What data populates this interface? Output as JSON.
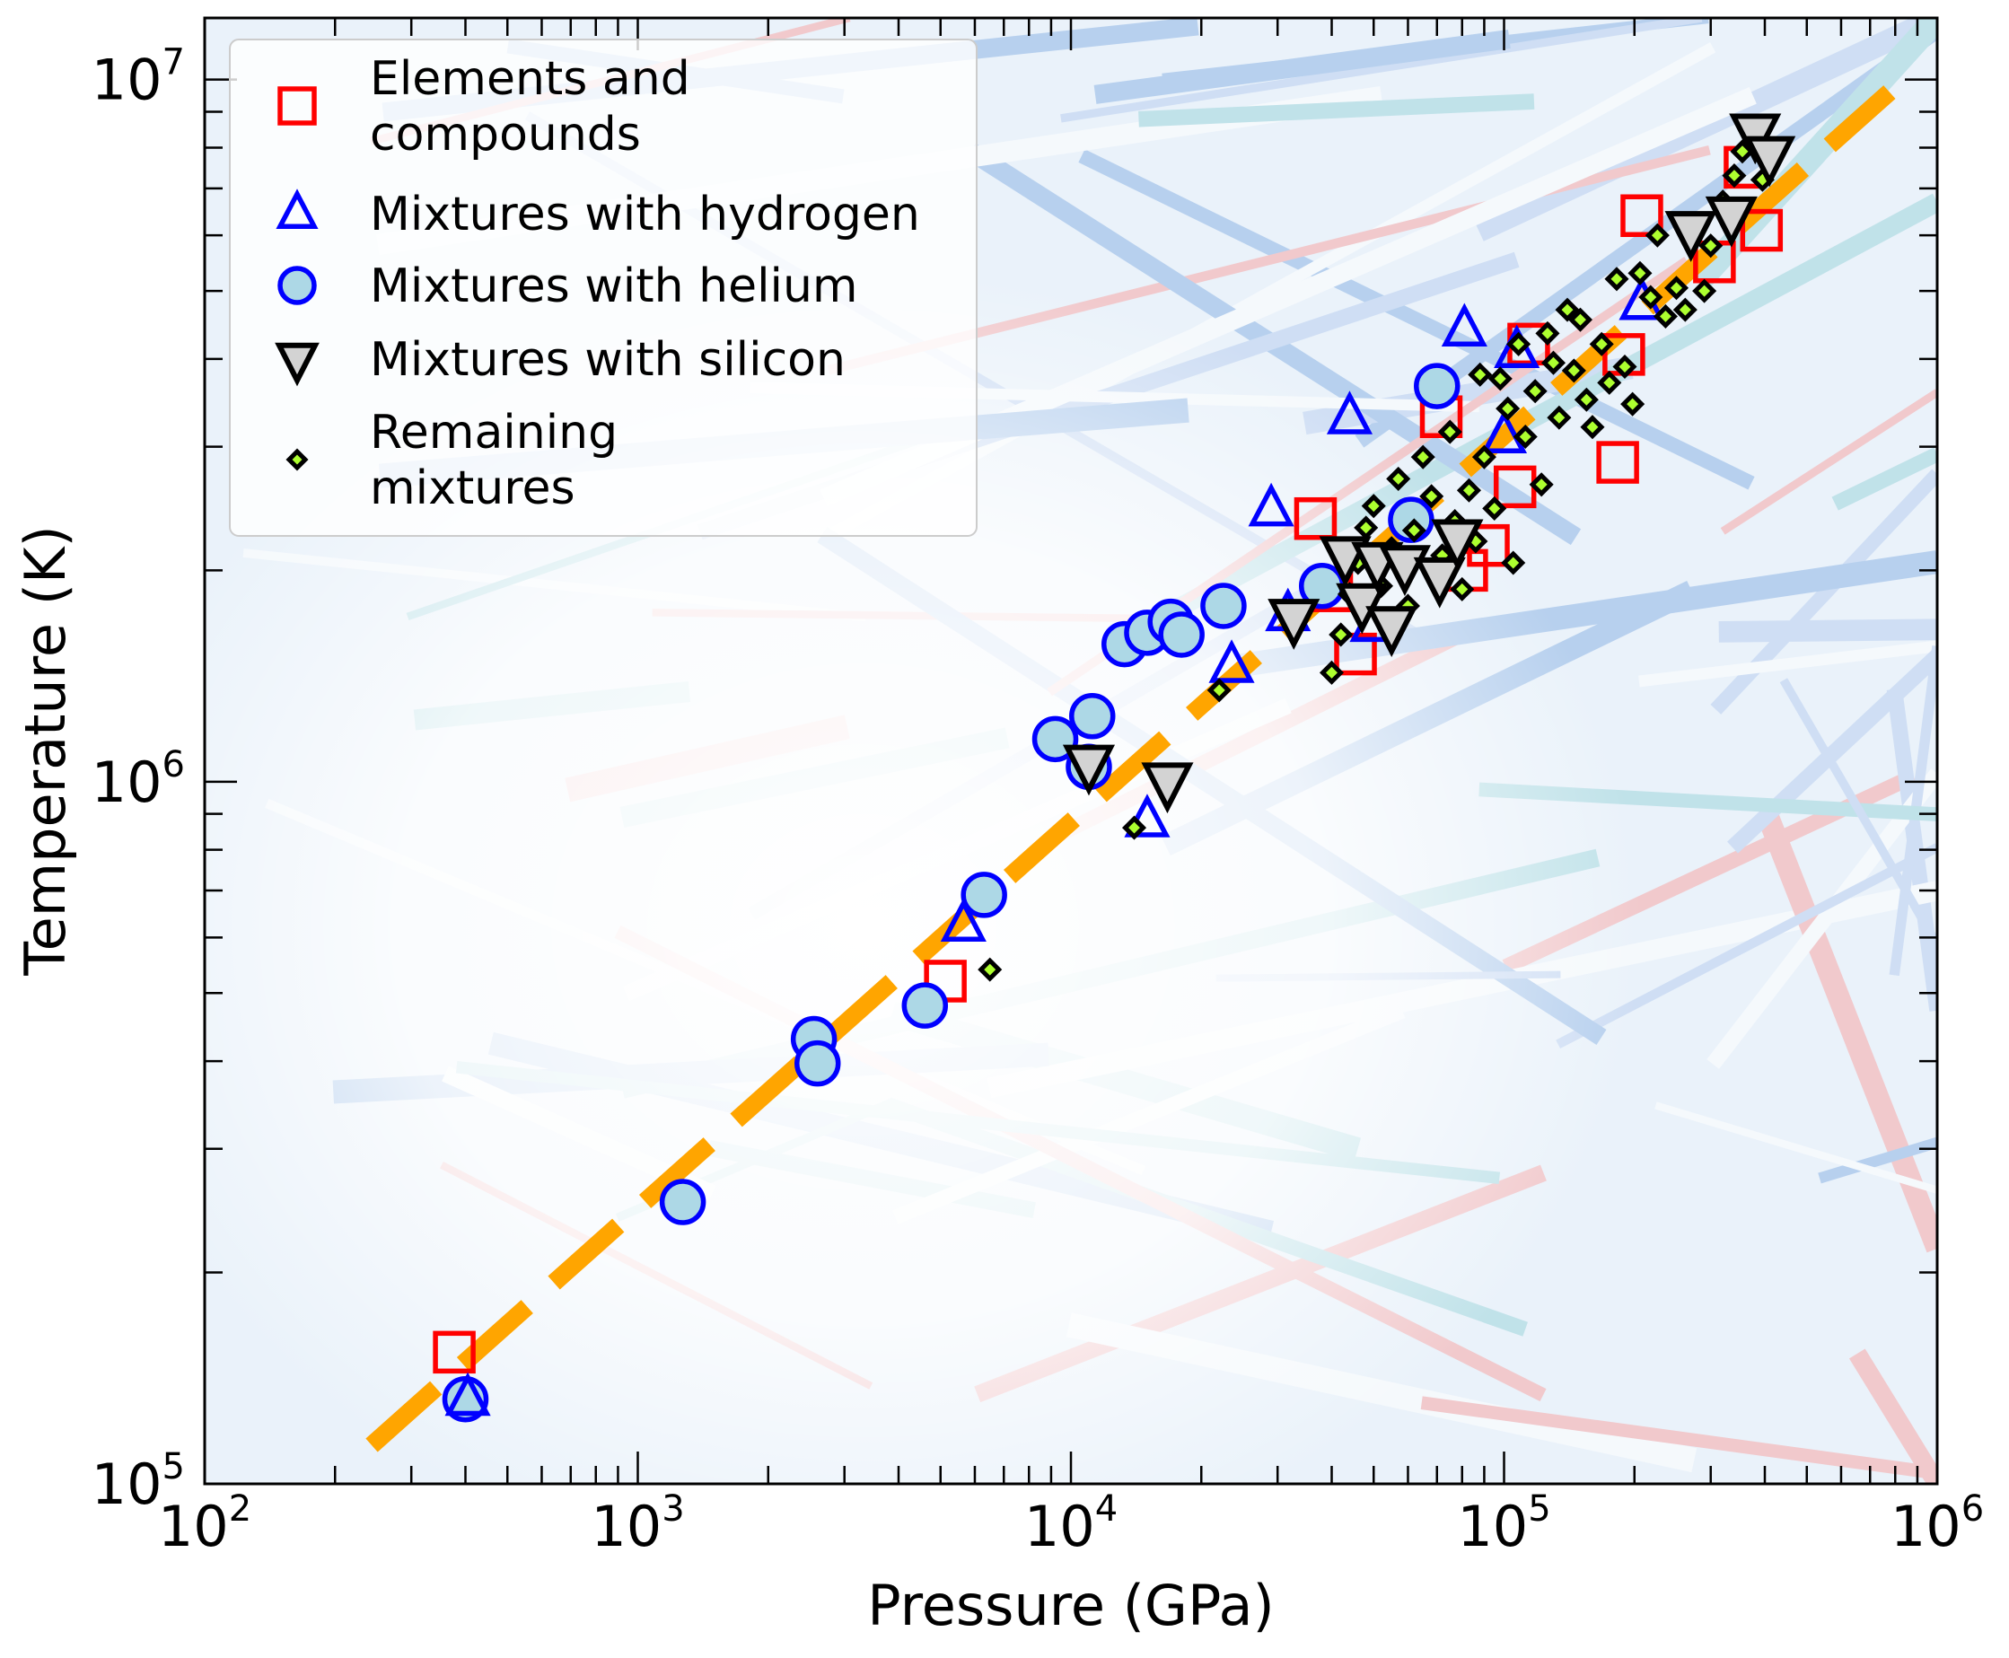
{
  "chart_data": {
    "type": "scatter",
    "title": "",
    "xlabel": "Pressure (GPa)",
    "ylabel": "Temperature (K)",
    "xscale": "log",
    "yscale": "log",
    "xlim": [
      100,
      1000000
    ],
    "ylim": [
      100000,
      12240000
    ],
    "x_ticks": [
      {
        "base": "10",
        "exp": "2",
        "value": 100
      },
      {
        "base": "10",
        "exp": "3",
        "value": 1000
      },
      {
        "base": "10",
        "exp": "4",
        "value": 10000
      },
      {
        "base": "10",
        "exp": "5",
        "value": 100000
      },
      {
        "base": "10",
        "exp": "6",
        "value": 1000000
      }
    ],
    "y_ticks": [
      {
        "base": "10",
        "exp": "5",
        "value": 100000
      },
      {
        "base": "10",
        "exp": "6",
        "value": 1000000
      },
      {
        "base": "10",
        "exp": "7",
        "value": 10000000
      }
    ],
    "grid": false,
    "legend_position": "top-left",
    "legend": [
      {
        "series": "elements",
        "lines": [
          "Elements and",
          "compounds"
        ]
      },
      {
        "series": "hydrogen",
        "lines": [
          "Mixtures with hydrogen"
        ]
      },
      {
        "series": "helium",
        "lines": [
          "Mixtures with helium"
        ]
      },
      {
        "series": "silicon",
        "lines": [
          "Mixtures with silicon"
        ]
      },
      {
        "series": "remaining",
        "lines": [
          "Remaining",
          "mixtures"
        ]
      }
    ],
    "fit_line": {
      "name": "Power-law fit",
      "style": "dashed",
      "color": "#ffa500",
      "x": [
        243,
        776000
      ],
      "y": [
        113500,
        9600000
      ]
    },
    "series": [
      {
        "name": "Elements and compounds",
        "key": "elements",
        "marker": "square",
        "edge_color": "#ff0000",
        "face_color": "none",
        "points": [
          [
            377,
            154000
          ],
          [
            5130,
            520000
          ],
          [
            36700,
            2370000
          ],
          [
            40000,
            1870000
          ],
          [
            45400,
            1520000
          ],
          [
            71600,
            3310000
          ],
          [
            82000,
            2000000
          ],
          [
            92000,
            2170000
          ],
          [
            106000,
            2630000
          ],
          [
            114000,
            4200000
          ],
          [
            183000,
            2850000
          ],
          [
            189000,
            4060000
          ],
          [
            208000,
            6400000
          ],
          [
            306000,
            5500000
          ],
          [
            360000,
            7500000
          ],
          [
            393000,
            6100000
          ]
        ]
      },
      {
        "name": "Mixtures with hydrogen",
        "key": "hydrogen",
        "marker": "triangle-up",
        "edge_color": "#0000ff",
        "face_color": "none",
        "points": [
          [
            405,
            132000
          ],
          [
            5650,
            625000
          ],
          [
            15000,
            880000
          ],
          [
            23500,
            1460000
          ],
          [
            29000,
            2440000
          ],
          [
            31700,
            1730000
          ],
          [
            44000,
            3300000
          ],
          [
            49700,
            1670000
          ],
          [
            81000,
            4400000
          ],
          [
            100000,
            3100000
          ],
          [
            107000,
            4100000
          ],
          [
            208000,
            4800000
          ]
        ]
      },
      {
        "name": "Mixtures with helium",
        "key": "helium",
        "marker": "circle",
        "edge_color": "#0000ff",
        "face_color": "#add8e6",
        "points": [
          [
            400,
            132000
          ],
          [
            1270,
            252000
          ],
          [
            2550,
            430000
          ],
          [
            2600,
            397000
          ],
          [
            4600,
            480000
          ],
          [
            6300,
            690000
          ],
          [
            9200,
            1150000
          ],
          [
            11000,
            1050000
          ],
          [
            11200,
            1240000
          ],
          [
            13300,
            1570000
          ],
          [
            15000,
            1630000
          ],
          [
            17000,
            1690000
          ],
          [
            18000,
            1620000
          ],
          [
            22500,
            1780000
          ],
          [
            38000,
            1900000
          ],
          [
            61000,
            2360000
          ],
          [
            70000,
            3660000
          ]
        ]
      },
      {
        "name": "Mixtures with silicon",
        "key": "silicon",
        "marker": "triangle-down",
        "edge_color": "#000000",
        "face_color": "#d3d3d3",
        "points": [
          [
            11000,
            1060000
          ],
          [
            16700,
            1000000
          ],
          [
            32700,
            1710000
          ],
          [
            43000,
            2100000
          ],
          [
            47000,
            1800000
          ],
          [
            51000,
            2060000
          ],
          [
            55000,
            1670000
          ],
          [
            59000,
            2040000
          ],
          [
            71000,
            1960000
          ],
          [
            78000,
            2220000
          ],
          [
            270000,
            6100000
          ],
          [
            335000,
            6400000
          ],
          [
            380000,
            8400000
          ],
          [
            410000,
            7800000
          ]
        ]
      },
      {
        "name": "Remaining mixtures",
        "key": "remaining",
        "marker": "diamond",
        "edge_color": "#000000",
        "face_color": "#adff2f",
        "points": [
          [
            6500,
            540000
          ],
          [
            14000,
            860000
          ],
          [
            22000,
            1350000
          ],
          [
            40000,
            1430000
          ],
          [
            42000,
            1620000
          ],
          [
            44000,
            1850000
          ],
          [
            46000,
            2050000
          ],
          [
            48000,
            2300000
          ],
          [
            50000,
            2470000
          ],
          [
            52000,
            1900000
          ],
          [
            55000,
            2150000
          ],
          [
            57000,
            2700000
          ],
          [
            60000,
            1780000
          ],
          [
            62000,
            2280000
          ],
          [
            65000,
            2900000
          ],
          [
            68000,
            2550000
          ],
          [
            70000,
            1960000
          ],
          [
            72000,
            2100000
          ],
          [
            75000,
            3150000
          ],
          [
            77000,
            2350000
          ],
          [
            80000,
            1880000
          ],
          [
            83000,
            2600000
          ],
          [
            86000,
            2200000
          ],
          [
            88000,
            3800000
          ],
          [
            90000,
            2900000
          ],
          [
            95000,
            2450000
          ],
          [
            98000,
            3750000
          ],
          [
            102000,
            3400000
          ],
          [
            105000,
            2050000
          ],
          [
            108000,
            4200000
          ],
          [
            112000,
            3100000
          ],
          [
            118000,
            3600000
          ],
          [
            122000,
            2650000
          ],
          [
            126000,
            4350000
          ],
          [
            130000,
            3950000
          ],
          [
            134000,
            3300000
          ],
          [
            140000,
            4700000
          ],
          [
            145000,
            3850000
          ],
          [
            150000,
            4550000
          ],
          [
            155000,
            3500000
          ],
          [
            160000,
            3200000
          ],
          [
            168000,
            4200000
          ],
          [
            175000,
            3700000
          ],
          [
            182000,
            5200000
          ],
          [
            190000,
            3900000
          ],
          [
            198000,
            3450000
          ],
          [
            206000,
            5300000
          ],
          [
            218000,
            4900000
          ],
          [
            226000,
            6000000
          ],
          [
            236000,
            4600000
          ],
          [
            250000,
            5050000
          ],
          [
            262000,
            4700000
          ],
          [
            290000,
            5000000
          ],
          [
            300000,
            5800000
          ],
          [
            320000,
            6700000
          ],
          [
            340000,
            7300000
          ],
          [
            355000,
            7900000
          ],
          [
            395000,
            7200000
          ]
        ]
      }
    ]
  }
}
